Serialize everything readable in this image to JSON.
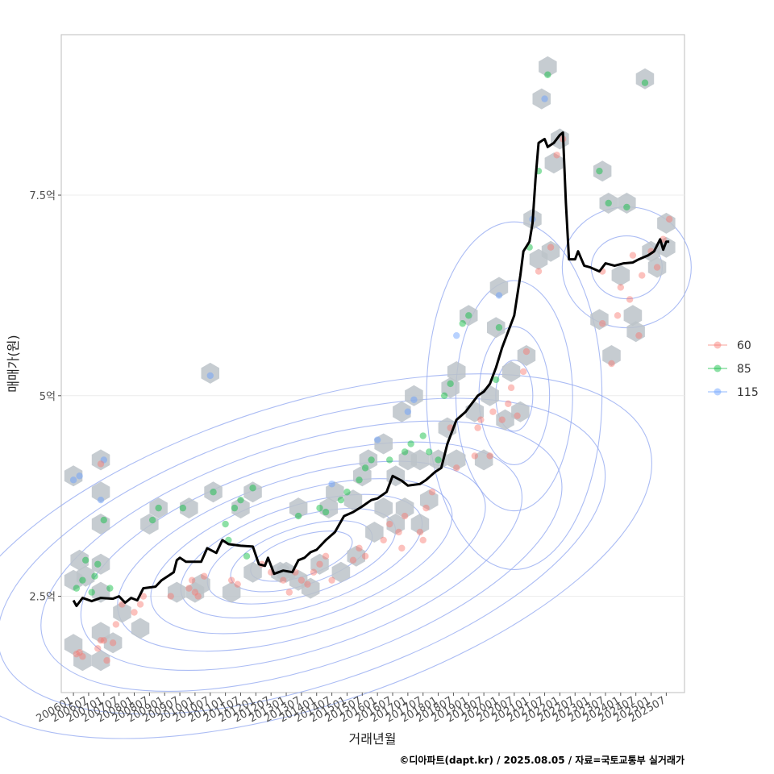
{
  "chart_data": {
    "type": "scatter",
    "xlabel": "거래년월",
    "ylabel": "매매가(원)",
    "caption": "©디아파트(dapt.kr) / 2025.08.05 / 자료=국토교통부 실거래가",
    "x_range": [
      2005.6,
      2026.1
    ],
    "y_range": [
      1.3,
      9.5
    ],
    "y_ticks": [
      {
        "value": 2.5,
        "label": "2.5억"
      },
      {
        "value": 5,
        "label": "5억"
      },
      {
        "value": 7.5,
        "label": "7.5억"
      }
    ],
    "x_ticks": [
      "200601",
      "200607",
      "200701",
      "200707",
      "200801",
      "200807",
      "200901",
      "200907",
      "201001",
      "201007",
      "201101",
      "201107",
      "201201",
      "201207",
      "201301",
      "201307",
      "201401",
      "201407",
      "201501",
      "201507",
      "201601",
      "201607",
      "201701",
      "201707",
      "201801",
      "201807",
      "201901",
      "201907",
      "202001",
      "202007",
      "202101",
      "202107",
      "202201",
      "202207",
      "202301",
      "202307",
      "202401",
      "202407",
      "202501",
      "202507"
    ],
    "legend": {
      "placement": "right",
      "entries": [
        {
          "label": "60",
          "color": "#F8766D"
        },
        {
          "label": "85",
          "color": "#00BA38"
        },
        {
          "label": "115",
          "color": "#619CFF"
        }
      ]
    },
    "colors": {
      "60": "#F8766D",
      "85": "#00BA38",
      "115": "#619CFF",
      "hex": "#bcc3c9",
      "contour": "#8fa6f0",
      "trend": "#000000"
    },
    "trend_line": [
      [
        2006.0,
        2.45
      ],
      [
        2006.1,
        2.38
      ],
      [
        2006.3,
        2.48
      ],
      [
        2006.6,
        2.44
      ],
      [
        2006.9,
        2.48
      ],
      [
        2007.3,
        2.47
      ],
      [
        2007.5,
        2.5
      ],
      [
        2007.7,
        2.42
      ],
      [
        2007.9,
        2.48
      ],
      [
        2008.1,
        2.45
      ],
      [
        2008.3,
        2.6
      ],
      [
        2008.7,
        2.62
      ],
      [
        2008.9,
        2.7
      ],
      [
        2009.1,
        2.75
      ],
      [
        2009.3,
        2.8
      ],
      [
        2009.4,
        2.95
      ],
      [
        2009.5,
        2.98
      ],
      [
        2009.7,
        2.93
      ],
      [
        2010.2,
        2.93
      ],
      [
        2010.4,
        3.1
      ],
      [
        2010.7,
        3.04
      ],
      [
        2010.9,
        3.2
      ],
      [
        2011.1,
        3.15
      ],
      [
        2011.5,
        3.13
      ],
      [
        2011.9,
        3.12
      ],
      [
        2012.1,
        2.9
      ],
      [
        2012.3,
        2.88
      ],
      [
        2012.4,
        2.98
      ],
      [
        2012.6,
        2.78
      ],
      [
        2012.9,
        2.82
      ],
      [
        2013.2,
        2.8
      ],
      [
        2013.4,
        2.95
      ],
      [
        2013.6,
        2.98
      ],
      [
        2013.8,
        3.05
      ],
      [
        2014.0,
        3.08
      ],
      [
        2014.3,
        3.2
      ],
      [
        2014.6,
        3.3
      ],
      [
        2014.9,
        3.5
      ],
      [
        2015.2,
        3.55
      ],
      [
        2015.5,
        3.62
      ],
      [
        2015.8,
        3.7
      ],
      [
        2016.0,
        3.72
      ],
      [
        2016.3,
        3.8
      ],
      [
        2016.5,
        4.0
      ],
      [
        2016.8,
        3.94
      ],
      [
        2017.0,
        3.88
      ],
      [
        2017.4,
        3.9
      ],
      [
        2017.6,
        3.95
      ],
      [
        2017.9,
        4.05
      ],
      [
        2018.1,
        4.1
      ],
      [
        2018.3,
        4.4
      ],
      [
        2018.6,
        4.7
      ],
      [
        2018.9,
        4.8
      ],
      [
        2019.1,
        4.9
      ],
      [
        2019.3,
        5.0
      ],
      [
        2019.5,
        5.05
      ],
      [
        2019.7,
        5.15
      ],
      [
        2019.9,
        5.35
      ],
      [
        2020.1,
        5.6
      ],
      [
        2020.3,
        5.8
      ],
      [
        2020.5,
        6.0
      ],
      [
        2020.7,
        6.5
      ],
      [
        2020.8,
        6.8
      ],
      [
        2021.0,
        6.92
      ],
      [
        2021.1,
        7.15
      ],
      [
        2021.2,
        7.7
      ],
      [
        2021.3,
        8.15
      ],
      [
        2021.5,
        8.2
      ],
      [
        2021.6,
        8.1
      ],
      [
        2021.8,
        8.15
      ],
      [
        2022.0,
        8.25
      ],
      [
        2022.1,
        8.28
      ],
      [
        2022.2,
        7.4
      ],
      [
        2022.3,
        6.7
      ],
      [
        2022.5,
        6.7
      ],
      [
        2022.6,
        6.8
      ],
      [
        2022.8,
        6.62
      ],
      [
        2023.0,
        6.6
      ],
      [
        2023.3,
        6.55
      ],
      [
        2023.5,
        6.65
      ],
      [
        2023.8,
        6.62
      ],
      [
        2024.1,
        6.65
      ],
      [
        2024.4,
        6.66
      ],
      [
        2024.6,
        6.7
      ],
      [
        2024.9,
        6.75
      ],
      [
        2025.1,
        6.8
      ],
      [
        2025.3,
        6.95
      ],
      [
        2025.4,
        6.82
      ],
      [
        2025.5,
        6.92
      ],
      [
        2025.6,
        6.92
      ]
    ],
    "points": [
      [
        2006.1,
        1.78,
        "60"
      ],
      [
        2006.2,
        1.8,
        "60"
      ],
      [
        2006.3,
        1.75,
        "60"
      ],
      [
        2006.1,
        2.6,
        "85"
      ],
      [
        2006.3,
        2.7,
        "85"
      ],
      [
        2006.4,
        2.95,
        "85"
      ],
      [
        2006.0,
        3.95,
        "115"
      ],
      [
        2006.2,
        4.0,
        "115"
      ],
      [
        2006.6,
        2.55,
        "85"
      ],
      [
        2006.7,
        2.75,
        "85"
      ],
      [
        2006.8,
        2.9,
        "85"
      ],
      [
        2007.0,
        3.45,
        "85"
      ],
      [
        2006.9,
        3.7,
        "115"
      ],
      [
        2007.0,
        4.2,
        "115"
      ],
      [
        2006.9,
        4.15,
        "60"
      ],
      [
        2006.8,
        1.85,
        "60"
      ],
      [
        2006.9,
        1.95,
        "60"
      ],
      [
        2007.0,
        1.95,
        "60"
      ],
      [
        2007.1,
        1.7,
        "60"
      ],
      [
        2007.3,
        1.92,
        "60"
      ],
      [
        2007.4,
        2.15,
        "60"
      ],
      [
        2007.2,
        2.6,
        "85"
      ],
      [
        2007.6,
        2.4,
        "60"
      ],
      [
        2008.0,
        2.3,
        "60"
      ],
      [
        2008.2,
        2.4,
        "60"
      ],
      [
        2008.3,
        2.5,
        "60"
      ],
      [
        2008.6,
        3.45,
        "85"
      ],
      [
        2008.8,
        3.6,
        "85"
      ],
      [
        2009.2,
        2.5,
        "60"
      ],
      [
        2009.6,
        3.6,
        "85"
      ],
      [
        2009.8,
        2.6,
        "60"
      ],
      [
        2009.9,
        2.7,
        "60"
      ],
      [
        2010.0,
        2.55,
        "60"
      ],
      [
        2010.1,
        2.5,
        "60"
      ],
      [
        2010.3,
        2.75,
        "60"
      ],
      [
        2010.5,
        5.25,
        "115"
      ],
      [
        2010.6,
        3.8,
        "85"
      ],
      [
        2011.0,
        3.4,
        "85"
      ],
      [
        2011.1,
        3.2,
        "85"
      ],
      [
        2011.3,
        3.6,
        "85"
      ],
      [
        2011.5,
        3.7,
        "85"
      ],
      [
        2011.2,
        2.7,
        "60"
      ],
      [
        2011.4,
        2.65,
        "60"
      ],
      [
        2011.7,
        3.0,
        "85"
      ],
      [
        2011.9,
        3.85,
        "85"
      ],
      [
        2012.2,
        2.9,
        "60"
      ],
      [
        2012.5,
        2.8,
        "60"
      ],
      [
        2012.9,
        2.7,
        "60"
      ],
      [
        2013.1,
        2.55,
        "60"
      ],
      [
        2013.3,
        2.8,
        "60"
      ],
      [
        2013.5,
        2.7,
        "60"
      ],
      [
        2013.7,
        2.65,
        "60"
      ],
      [
        2013.9,
        2.8,
        "60"
      ],
      [
        2013.4,
        3.5,
        "85"
      ],
      [
        2014.1,
        2.9,
        "60"
      ],
      [
        2014.3,
        3.0,
        "60"
      ],
      [
        2014.5,
        2.7,
        "60"
      ],
      [
        2014.1,
        3.6,
        "85"
      ],
      [
        2014.3,
        3.55,
        "85"
      ],
      [
        2014.5,
        3.9,
        "115"
      ],
      [
        2014.8,
        3.7,
        "85"
      ],
      [
        2015.0,
        3.8,
        "85"
      ],
      [
        2015.2,
        2.95,
        "60"
      ],
      [
        2015.4,
        3.1,
        "60"
      ],
      [
        2015.6,
        3.0,
        "60"
      ],
      [
        2015.4,
        3.95,
        "85"
      ],
      [
        2015.6,
        4.1,
        "85"
      ],
      [
        2015.8,
        4.2,
        "85"
      ],
      [
        2016.0,
        4.45,
        "115"
      ],
      [
        2016.2,
        3.2,
        "60"
      ],
      [
        2016.4,
        3.4,
        "60"
      ],
      [
        2016.4,
        4.2,
        "85"
      ],
      [
        2016.7,
        3.3,
        "60"
      ],
      [
        2016.8,
        3.1,
        "60"
      ],
      [
        2016.9,
        3.5,
        "60"
      ],
      [
        2016.9,
        4.3,
        "85"
      ],
      [
        2017.0,
        4.8,
        "115"
      ],
      [
        2017.1,
        4.4,
        "85"
      ],
      [
        2017.2,
        4.95,
        "115"
      ],
      [
        2017.4,
        3.3,
        "60"
      ],
      [
        2017.5,
        3.2,
        "60"
      ],
      [
        2017.6,
        3.6,
        "60"
      ],
      [
        2017.5,
        4.5,
        "85"
      ],
      [
        2017.7,
        4.3,
        "85"
      ],
      [
        2017.8,
        3.8,
        "60"
      ],
      [
        2018.0,
        4.2,
        "85"
      ],
      [
        2018.2,
        5.0,
        "85"
      ],
      [
        2018.4,
        5.15,
        "85"
      ],
      [
        2018.4,
        4.6,
        "60"
      ],
      [
        2018.6,
        4.1,
        "60"
      ],
      [
        2018.6,
        5.75,
        "115"
      ],
      [
        2018.8,
        5.9,
        "85"
      ],
      [
        2019.0,
        6.0,
        "85"
      ],
      [
        2019.2,
        4.25,
        "60"
      ],
      [
        2019.3,
        4.6,
        "60"
      ],
      [
        2019.4,
        4.7,
        "60"
      ],
      [
        2019.7,
        4.25,
        "60"
      ],
      [
        2019.8,
        4.8,
        "60"
      ],
      [
        2019.9,
        5.2,
        "85"
      ],
      [
        2020.0,
        5.85,
        "85"
      ],
      [
        2020.0,
        6.25,
        "115"
      ],
      [
        2020.1,
        4.7,
        "60"
      ],
      [
        2020.3,
        4.9,
        "60"
      ],
      [
        2020.4,
        5.1,
        "60"
      ],
      [
        2020.6,
        4.75,
        "60"
      ],
      [
        2020.8,
        5.3,
        "60"
      ],
      [
        2020.9,
        5.55,
        "60"
      ],
      [
        2021.0,
        6.85,
        "85"
      ],
      [
        2021.1,
        7.2,
        "115"
      ],
      [
        2021.3,
        6.55,
        "60"
      ],
      [
        2021.3,
        7.8,
        "85"
      ],
      [
        2021.5,
        8.7,
        "115"
      ],
      [
        2021.6,
        9.0,
        "85"
      ],
      [
        2021.7,
        6.85,
        "60"
      ],
      [
        2021.9,
        8.0,
        "60"
      ],
      [
        2022.1,
        8.2,
        "60"
      ],
      [
        2023.3,
        7.8,
        "85"
      ],
      [
        2023.4,
        6.55,
        "60"
      ],
      [
        2023.6,
        7.4,
        "85"
      ],
      [
        2023.7,
        5.4,
        "60"
      ],
      [
        2023.9,
        6.0,
        "60"
      ],
      [
        2024.2,
        7.35,
        "85"
      ],
      [
        2024.3,
        6.2,
        "60"
      ],
      [
        2024.4,
        6.75,
        "60"
      ],
      [
        2024.6,
        5.75,
        "60"
      ],
      [
        2024.7,
        6.5,
        "60"
      ],
      [
        2024.8,
        8.9,
        "85"
      ],
      [
        2025.0,
        6.8,
        "60"
      ],
      [
        2025.2,
        6.6,
        "60"
      ],
      [
        2025.4,
        6.95,
        "60"
      ],
      [
        2025.6,
        7.2,
        "60"
      ],
      [
        2023.4,
        5.9,
        "60"
      ],
      [
        2024.0,
        6.35,
        "60"
      ]
    ],
    "hex_bins": [
      [
        2006.0,
        4.0
      ],
      [
        2006.0,
        2.7
      ],
      [
        2006.2,
        2.95
      ],
      [
        2006.4,
        2.75
      ],
      [
        2006.0,
        1.9
      ],
      [
        2006.3,
        1.7
      ],
      [
        2006.9,
        4.2
      ],
      [
        2006.9,
        3.8
      ],
      [
        2006.9,
        3.4
      ],
      [
        2006.9,
        2.9
      ],
      [
        2006.9,
        2.55
      ],
      [
        2006.9,
        2.05
      ],
      [
        2006.9,
        1.7
      ],
      [
        2007.3,
        1.92
      ],
      [
        2007.6,
        2.3
      ],
      [
        2008.2,
        2.1
      ],
      [
        2008.5,
        3.4
      ],
      [
        2008.8,
        3.6
      ],
      [
        2009.4,
        2.55
      ],
      [
        2009.8,
        3.6
      ],
      [
        2010.5,
        5.28
      ],
      [
        2010.6,
        3.8
      ],
      [
        2010.2,
        2.65
      ],
      [
        2010.0,
        2.55
      ],
      [
        2011.2,
        2.55
      ],
      [
        2011.5,
        3.6
      ],
      [
        2011.9,
        3.8
      ],
      [
        2011.9,
        2.8
      ],
      [
        2012.8,
        2.8
      ],
      [
        2013.0,
        2.8
      ],
      [
        2013.4,
        3.6
      ],
      [
        2013.4,
        2.7
      ],
      [
        2013.8,
        2.6
      ],
      [
        2014.1,
        2.9
      ],
      [
        2014.4,
        3.6
      ],
      [
        2014.6,
        3.8
      ],
      [
        2014.8,
        2.8
      ],
      [
        2015.2,
        3.7
      ],
      [
        2015.3,
        3.0
      ],
      [
        2015.5,
        4.0
      ],
      [
        2015.7,
        4.2
      ],
      [
        2015.9,
        3.3
      ],
      [
        2016.2,
        4.4
      ],
      [
        2016.2,
        3.6
      ],
      [
        2016.6,
        4.0
      ],
      [
        2016.6,
        3.4
      ],
      [
        2016.8,
        4.8
      ],
      [
        2016.9,
        3.6
      ],
      [
        2017.0,
        4.2
      ],
      [
        2017.2,
        5.0
      ],
      [
        2017.4,
        3.4
      ],
      [
        2017.4,
        4.2
      ],
      [
        2017.7,
        3.7
      ],
      [
        2018.0,
        4.2
      ],
      [
        2018.3,
        4.6
      ],
      [
        2018.4,
        5.1
      ],
      [
        2018.6,
        4.2
      ],
      [
        2018.6,
        5.3
      ],
      [
        2019.0,
        6.0
      ],
      [
        2019.2,
        4.8
      ],
      [
        2019.5,
        4.2
      ],
      [
        2019.7,
        5.0
      ],
      [
        2019.9,
        5.85
      ],
      [
        2020.0,
        6.35
      ],
      [
        2020.2,
        4.7
      ],
      [
        2020.4,
        5.3
      ],
      [
        2020.7,
        4.8
      ],
      [
        2020.9,
        5.5
      ],
      [
        2021.1,
        7.2
      ],
      [
        2021.3,
        6.7
      ],
      [
        2021.4,
        8.7
      ],
      [
        2021.6,
        9.1
      ],
      [
        2021.7,
        6.8
      ],
      [
        2021.8,
        7.9
      ],
      [
        2022.0,
        8.2
      ],
      [
        2023.4,
        7.8
      ],
      [
        2023.6,
        7.4
      ],
      [
        2023.3,
        5.95
      ],
      [
        2023.7,
        5.5
      ],
      [
        2024.0,
        6.5
      ],
      [
        2024.2,
        7.4
      ],
      [
        2024.4,
        6.0
      ],
      [
        2024.5,
        5.8
      ],
      [
        2024.8,
        8.95
      ],
      [
        2025.0,
        6.8
      ],
      [
        2025.2,
        6.6
      ],
      [
        2025.5,
        7.15
      ],
      [
        2025.5,
        6.85
      ]
    ],
    "grid": true
  }
}
